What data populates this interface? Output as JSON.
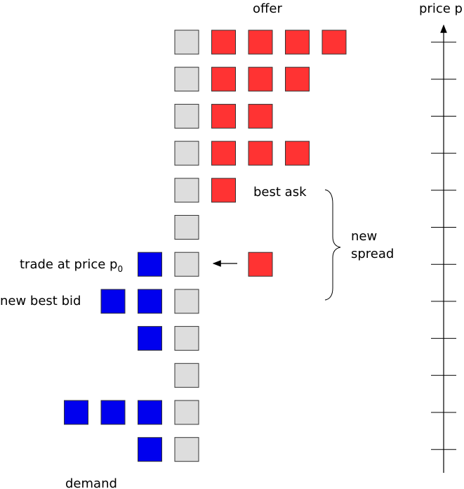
{
  "labels": {
    "offer": "offer",
    "demand": "demand",
    "price_axis": "price p",
    "best_ask": "best ask",
    "new_spread_line1": "new",
    "new_spread_line2": "spread",
    "trade_text": "trade at price p",
    "trade_subscript": "0",
    "new_best_bid": "new best bid"
  },
  "colors": {
    "offer": "#ff3333",
    "demand": "#0000ee",
    "neutral": "#dddddd",
    "outline": "#333333"
  },
  "price_levels": [
    {
      "offers": 4,
      "bids": 0
    },
    {
      "offers": 3,
      "bids": 0
    },
    {
      "offers": 2,
      "bids": 0
    },
    {
      "offers": 3,
      "bids": 0
    },
    {
      "offers": 1,
      "bids": 0
    },
    {
      "offers": 0,
      "bids": 0
    },
    {
      "offers": 0,
      "bids": 1,
      "incoming_offer": 1
    },
    {
      "offers": 0,
      "bids": 2
    },
    {
      "offers": 0,
      "bids": 1
    },
    {
      "offers": 0,
      "bids": 0
    },
    {
      "offers": 0,
      "bids": 3
    },
    {
      "offers": 0,
      "bids": 1
    }
  ]
}
